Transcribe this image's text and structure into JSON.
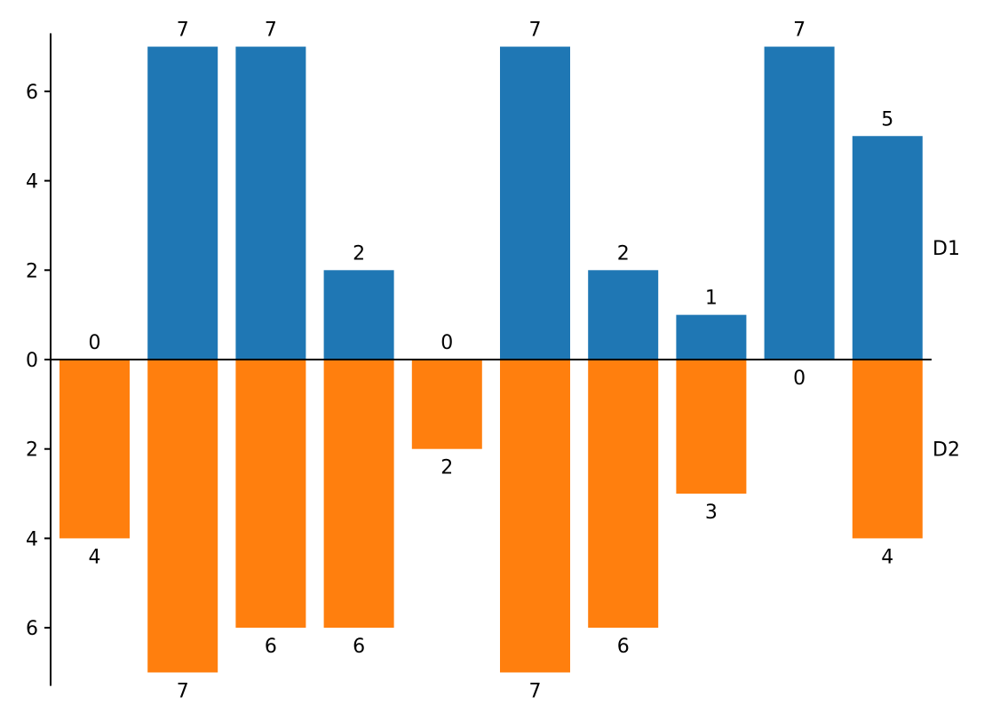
{
  "chart_data": {
    "type": "bar",
    "categories": [
      "",
      "",
      "",
      "",
      "",
      "",
      "",
      "",
      "",
      ""
    ],
    "series": [
      {
        "name": "D1",
        "values": [
          0,
          7,
          7,
          2,
          0,
          7,
          2,
          1,
          7,
          5
        ],
        "color": "#1f77b4",
        "direction": "up"
      },
      {
        "name": "D2",
        "values": [
          4,
          7,
          6,
          6,
          2,
          7,
          6,
          3,
          0,
          4
        ],
        "color": "#ff7f0e",
        "direction": "down"
      }
    ],
    "ylim": [
      -7.3,
      7.3
    ],
    "y_ticks": [
      -6,
      -4,
      -2,
      0,
      2,
      4,
      6
    ],
    "y_tick_labels": [
      "6",
      "4",
      "2",
      "0",
      "2",
      "4",
      "6"
    ],
    "grid": false,
    "legend": "series names at right end of bars"
  }
}
